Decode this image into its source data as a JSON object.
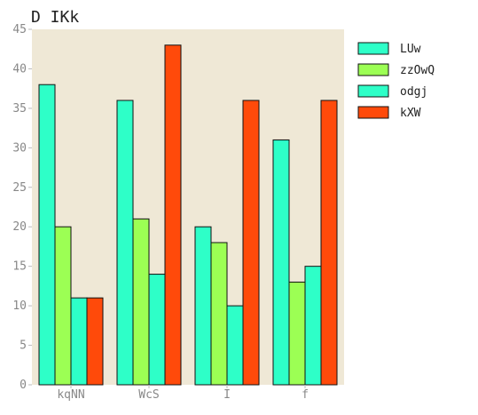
{
  "chart_data": {
    "type": "bar",
    "title": "D IKk",
    "xlabel": "",
    "ylabel": "",
    "categories": [
      "kqNN",
      "WcS",
      "I",
      "f"
    ],
    "ylim": [
      0,
      45
    ],
    "yticks": [
      0,
      5,
      10,
      15,
      20,
      25,
      30,
      35,
      40,
      45
    ],
    "grid": false,
    "legend_position": "outside-right-top",
    "background_color": "#efe8d6",
    "series": [
      {
        "name": "LUw",
        "color": "#2effc8",
        "values": [
          38,
          36,
          20,
          31
        ]
      },
      {
        "name": "zzOwQ",
        "color": "#9cff54",
        "values": [
          20,
          21,
          18,
          13
        ]
      },
      {
        "name": "odgj",
        "color": "#2effc8",
        "values": [
          11,
          14,
          10,
          15
        ]
      },
      {
        "name": "kXW",
        "color": "#ff4a0a",
        "values": [
          11,
          43,
          36,
          36
        ]
      }
    ]
  }
}
